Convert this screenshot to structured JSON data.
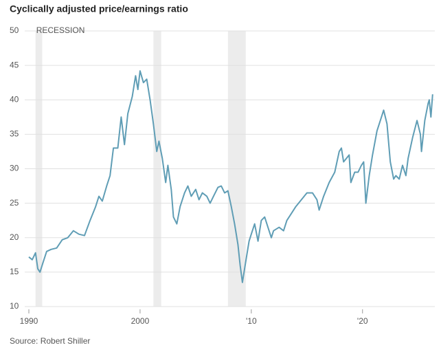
{
  "chart_data": {
    "type": "line",
    "title": "Cyclically adjusted price/earnings ratio",
    "source": "Source: Robert Shiller",
    "recession_label": "RECESSION",
    "recessions": [
      [
        1990.6,
        1991.2
      ],
      [
        2001.2,
        2001.9
      ],
      [
        2007.9,
        2009.5
      ]
    ],
    "recession_color": "#ececec",
    "grid": true,
    "xlim": [
      1990,
      2026.5
    ],
    "xticks": [
      1990,
      2000,
      {
        "value": 2010,
        "label": "'10"
      },
      {
        "value": 2020,
        "label": "'20"
      }
    ],
    "ylim": [
      10,
      50
    ],
    "yticks": [
      10,
      15,
      20,
      25,
      30,
      35,
      40,
      45,
      50
    ],
    "series": [
      {
        "color": "#5f9db5",
        "x": [
          1990.0,
          1990.3,
          1990.6,
          1990.8,
          1991.0,
          1991.3,
          1991.6,
          1992.0,
          1992.5,
          1993.0,
          1993.5,
          1994.0,
          1994.5,
          1995.0,
          1995.5,
          1996.0,
          1996.3,
          1996.6,
          1997.0,
          1997.3,
          1997.6,
          1998.0,
          1998.3,
          1998.6,
          1998.9,
          1999.3,
          1999.6,
          1999.8,
          2000.0,
          2000.3,
          2000.6,
          2000.9,
          2001.2,
          2001.5,
          2001.7,
          2002.0,
          2002.3,
          2002.5,
          2002.8,
          2003.0,
          2003.3,
          2003.6,
          2004.0,
          2004.3,
          2004.6,
          2005.0,
          2005.3,
          2005.6,
          2006.0,
          2006.3,
          2006.6,
          2007.0,
          2007.3,
          2007.6,
          2007.9,
          2008.2,
          2008.5,
          2008.8,
          2009.0,
          2009.2,
          2009.5,
          2009.8,
          2010.0,
          2010.3,
          2010.6,
          2010.9,
          2011.2,
          2011.5,
          2011.8,
          2012.0,
          2012.5,
          2012.9,
          2013.2,
          2013.6,
          2014.0,
          2014.5,
          2015.0,
          2015.5,
          2015.9,
          2016.1,
          2016.5,
          2017.0,
          2017.5,
          2017.9,
          2018.1,
          2018.3,
          2018.8,
          2018.95,
          2019.3,
          2019.6,
          2019.9,
          2020.1,
          2020.3,
          2020.6,
          2020.9,
          2021.3,
          2021.7,
          2021.9,
          2022.2,
          2022.5,
          2022.8,
          2023.0,
          2023.3,
          2023.6,
          2023.9,
          2024.1,
          2024.5,
          2024.9,
          2025.2,
          2025.3,
          2025.6,
          2025.9,
          2026.0,
          2026.15,
          2026.3
        ],
        "values": [
          17.2,
          16.8,
          17.8,
          15.5,
          15.0,
          16.5,
          18.0,
          18.3,
          18.5,
          19.7,
          20.0,
          21.0,
          20.5,
          20.3,
          22.5,
          24.5,
          26.0,
          25.3,
          27.5,
          29.0,
          33.0,
          33.0,
          37.5,
          33.5,
          38.0,
          40.5,
          43.5,
          41.5,
          44.2,
          42.5,
          43.0,
          40.0,
          36.5,
          32.5,
          34.0,
          31.5,
          28.0,
          30.5,
          27.0,
          23.0,
          22.0,
          24.5,
          26.5,
          27.5,
          26.0,
          27.0,
          25.5,
          26.5,
          26.0,
          25.0,
          26.0,
          27.3,
          27.5,
          26.5,
          26.8,
          24.5,
          22.0,
          19.0,
          16.0,
          13.5,
          16.5,
          19.5,
          20.5,
          22.0,
          19.5,
          22.5,
          23.0,
          21.5,
          20.0,
          21.0,
          21.5,
          21.0,
          22.5,
          23.5,
          24.5,
          25.5,
          26.5,
          26.5,
          25.5,
          24.0,
          26.0,
          28.0,
          29.5,
          32.5,
          33.0,
          31.0,
          32.0,
          28.0,
          29.5,
          29.5,
          30.5,
          31.0,
          25.0,
          29.0,
          32.0,
          35.5,
          37.5,
          38.5,
          36.5,
          31.0,
          28.5,
          29.0,
          28.5,
          30.5,
          29.0,
          31.5,
          34.5,
          37.0,
          35.0,
          32.5,
          37.0,
          39.5,
          40.0,
          37.5,
          40.8
        ]
      }
    ]
  }
}
